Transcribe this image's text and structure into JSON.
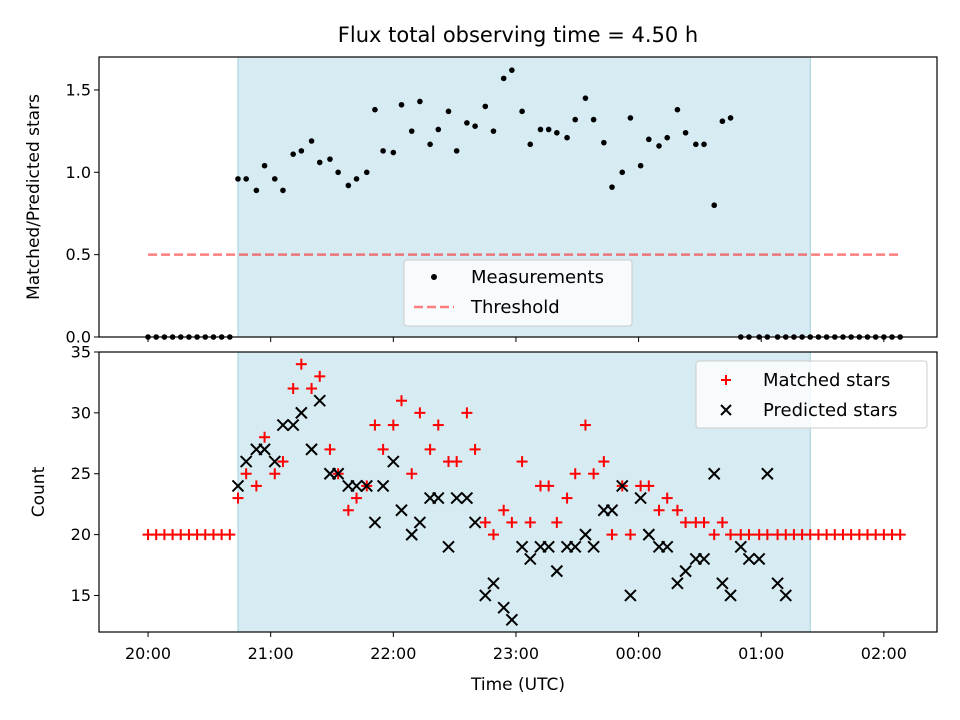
{
  "title": "Flux total observing time = 4.50 h",
  "colors": {
    "shade": "#add8e6",
    "measurement": "#000000",
    "threshold": "#ff0000",
    "matched": "#ff0000",
    "predicted": "#000000"
  },
  "chart_data": [
    {
      "type": "scatter",
      "ylabel": "Matched/Predicted stars",
      "ylim": [
        0,
        1.7
      ],
      "yticks": [
        0.0,
        0.5,
        1.0,
        1.5
      ],
      "ytick_labels": [
        "0.0",
        "0.5",
        "1.0",
        "1.5"
      ],
      "xlim": [
        "19:36",
        "02:26"
      ],
      "shaded_interval": [
        "20:44",
        "01:24"
      ],
      "legend": {
        "position": "lower-center",
        "entries": [
          "Measurements",
          "Threshold"
        ]
      },
      "series": [
        {
          "name": "Measurements",
          "marker": "dot",
          "x": [
            "20:00",
            "20:04",
            "20:08",
            "20:12",
            "20:16",
            "20:20",
            "20:24",
            "20:28",
            "20:32",
            "20:36",
            "20:40",
            "20:44",
            "20:48",
            "20:53",
            "20:57",
            "21:02",
            "21:06",
            "21:11",
            "21:15",
            "21:20",
            "21:24",
            "21:29",
            "21:33",
            "21:38",
            "21:42",
            "21:47",
            "21:51",
            "21:55",
            "22:00",
            "22:04",
            "22:09",
            "22:13",
            "22:18",
            "22:22",
            "22:27",
            "22:31",
            "22:36",
            "22:40",
            "22:45",
            "22:49",
            "22:54",
            "22:58",
            "23:03",
            "23:07",
            "23:12",
            "23:16",
            "23:20",
            "23:25",
            "23:29",
            "23:34",
            "23:38",
            "23:43",
            "23:47",
            "23:52",
            "23:56",
            "00:01",
            "00:05",
            "00:10",
            "00:14",
            "00:19",
            "00:23",
            "00:28",
            "00:32",
            "00:37",
            "00:41",
            "00:45",
            "00:50",
            "00:54",
            "00:59",
            "01:03",
            "01:08",
            "01:12",
            "01:16",
            "01:20",
            "01:24",
            "01:28",
            "01:32",
            "01:36",
            "01:40",
            "01:44",
            "01:48",
            "01:52",
            "01:56",
            "02:00",
            "02:04",
            "02:08"
          ],
          "y": [
            0,
            0,
            0,
            0,
            0,
            0,
            0,
            0,
            0,
            0,
            0,
            0.96,
            0.96,
            0.89,
            1.04,
            0.96,
            0.89,
            1.11,
            1.13,
            1.19,
            1.06,
            1.08,
            1.0,
            0.92,
            0.96,
            1.0,
            1.38,
            1.13,
            1.12,
            1.41,
            1.25,
            1.43,
            1.17,
            1.26,
            1.37,
            1.13,
            1.3,
            1.28,
            1.4,
            1.25,
            1.57,
            1.62,
            1.37,
            1.17,
            1.26,
            1.26,
            1.24,
            1.21,
            1.32,
            1.45,
            1.32,
            1.18,
            0.91,
            1.0,
            1.33,
            1.04,
            1.2,
            1.16,
            1.21,
            1.38,
            1.24,
            1.17,
            1.17,
            0.8,
            1.31,
            1.33,
            0,
            0,
            0,
            0,
            0,
            0,
            0,
            0,
            0,
            0,
            0,
            0,
            0,
            0,
            0,
            0,
            0,
            0,
            0,
            0
          ]
        },
        {
          "name": "Threshold",
          "style": "dashed-line",
          "x": [
            "20:00",
            "02:08"
          ],
          "y": [
            0.5,
            0.5
          ]
        }
      ]
    },
    {
      "type": "scatter",
      "xlabel": "Time (UTC)",
      "ylabel": "Count",
      "ylim": [
        12,
        35
      ],
      "yticks": [
        15,
        20,
        25,
        30,
        35
      ],
      "ytick_labels": [
        "15",
        "20",
        "25",
        "30",
        "35"
      ],
      "xlim": [
        "19:36",
        "02:26"
      ],
      "xticks": [
        "20:00",
        "21:00",
        "22:00",
        "23:00",
        "00:00",
        "01:00",
        "02:00"
      ],
      "shaded_interval": [
        "20:44",
        "01:24"
      ],
      "legend": {
        "position": "upper-right",
        "entries": [
          "Matched stars",
          "Predicted stars"
        ]
      },
      "series": [
        {
          "name": "Matched stars",
          "marker": "plus",
          "x": [
            "20:00",
            "20:04",
            "20:08",
            "20:12",
            "20:16",
            "20:20",
            "20:24",
            "20:28",
            "20:32",
            "20:36",
            "20:40",
            "20:44",
            "20:48",
            "20:53",
            "20:57",
            "21:02",
            "21:06",
            "21:11",
            "21:15",
            "21:20",
            "21:24",
            "21:29",
            "21:33",
            "21:38",
            "21:42",
            "21:47",
            "21:51",
            "21:55",
            "22:00",
            "22:04",
            "22:09",
            "22:13",
            "22:18",
            "22:22",
            "22:27",
            "22:31",
            "22:36",
            "22:40",
            "22:45",
            "22:49",
            "22:54",
            "22:58",
            "23:03",
            "23:07",
            "23:12",
            "23:16",
            "23:20",
            "23:25",
            "23:29",
            "23:34",
            "23:38",
            "23:43",
            "23:47",
            "23:52",
            "23:56",
            "00:01",
            "00:05",
            "00:10",
            "00:14",
            "00:19",
            "00:23",
            "00:28",
            "00:32",
            "00:37",
            "00:41",
            "00:45",
            "00:50",
            "00:54",
            "00:59",
            "01:03",
            "01:08",
            "01:12",
            "01:16",
            "01:20",
            "01:24",
            "01:28",
            "01:32",
            "01:36",
            "01:40",
            "01:44",
            "01:48",
            "01:52",
            "01:56",
            "02:00",
            "02:04",
            "02:08"
          ],
          "y": [
            20,
            20,
            20,
            20,
            20,
            20,
            20,
            20,
            20,
            20,
            20,
            23,
            25,
            24,
            28,
            25,
            26,
            32,
            34,
            32,
            33,
            27,
            25,
            22,
            23,
            24,
            29,
            27,
            29,
            31,
            25,
            30,
            27,
            29,
            26,
            26,
            30,
            27,
            21,
            20,
            22,
            21,
            26,
            21,
            24,
            24,
            21,
            23,
            25,
            29,
            25,
            26,
            20,
            24,
            20,
            24,
            24,
            22,
            23,
            22,
            21,
            21,
            21,
            20,
            21,
            20,
            20,
            20,
            20,
            20,
            20,
            20,
            20,
            20,
            20,
            20,
            20,
            20,
            20,
            20,
            20,
            20,
            20,
            20,
            20,
            20
          ]
        },
        {
          "name": "Predicted stars",
          "marker": "x",
          "x": [
            "20:44",
            "20:48",
            "20:53",
            "20:57",
            "21:02",
            "21:06",
            "21:11",
            "21:15",
            "21:20",
            "21:24",
            "21:29",
            "21:33",
            "21:38",
            "21:42",
            "21:47",
            "21:51",
            "21:55",
            "22:00",
            "22:04",
            "22:09",
            "22:13",
            "22:18",
            "22:22",
            "22:27",
            "22:31",
            "22:36",
            "22:40",
            "22:45",
            "22:49",
            "22:54",
            "22:58",
            "23:03",
            "23:07",
            "23:12",
            "23:16",
            "23:20",
            "23:25",
            "23:29",
            "23:34",
            "23:38",
            "23:43",
            "23:47",
            "23:52",
            "23:56",
            "00:01",
            "00:05",
            "00:10",
            "00:14",
            "00:19",
            "00:23",
            "00:28",
            "00:32",
            "00:37",
            "00:41",
            "00:45",
            "00:50",
            "00:54",
            "00:59",
            "01:03",
            "01:08",
            "01:12"
          ],
          "y": [
            24,
            26,
            27,
            27,
            26,
            29,
            29,
            30,
            27,
            31,
            25,
            25,
            24,
            24,
            24,
            21,
            24,
            26,
            22,
            20,
            21,
            23,
            23,
            19,
            23,
            23,
            21,
            15,
            16,
            14,
            13,
            19,
            18,
            19,
            19,
            17,
            19,
            19,
            20,
            19,
            22,
            22,
            24,
            15,
            23,
            20,
            19,
            19,
            16,
            17,
            18,
            18,
            25,
            16,
            15,
            19,
            18,
            18,
            25,
            16,
            15
          ]
        }
      ]
    }
  ]
}
